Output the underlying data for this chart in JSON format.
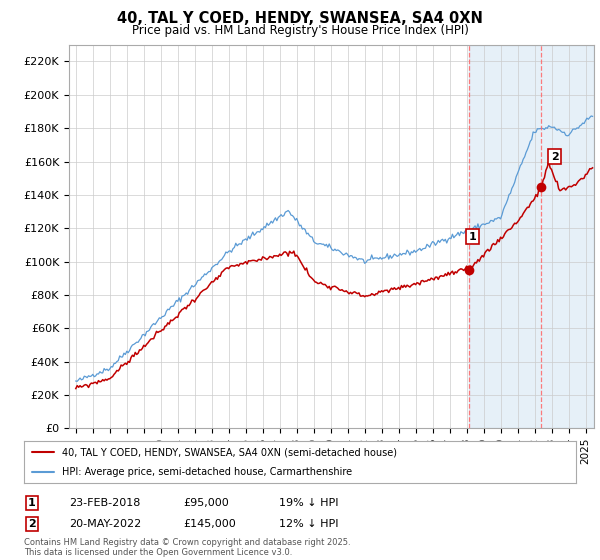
{
  "title_line1": "40, TAL Y COED, HENDY, SWANSEA, SA4 0XN",
  "title_line2": "Price paid vs. HM Land Registry's House Price Index (HPI)",
  "xlim_year": [
    1994.6,
    2025.5
  ],
  "ylim": [
    0,
    230000
  ],
  "yticks": [
    0,
    20000,
    40000,
    60000,
    80000,
    100000,
    120000,
    140000,
    160000,
    180000,
    200000,
    220000
  ],
  "ytick_labels": [
    "£0",
    "£20K",
    "£40K",
    "£60K",
    "£80K",
    "£100K",
    "£120K",
    "£140K",
    "£160K",
    "£180K",
    "£200K",
    "£220K"
  ],
  "xtick_years": [
    1995,
    1996,
    1997,
    1998,
    1999,
    2000,
    2001,
    2002,
    2003,
    2004,
    2005,
    2006,
    2007,
    2008,
    2009,
    2010,
    2011,
    2012,
    2013,
    2014,
    2015,
    2016,
    2017,
    2018,
    2019,
    2020,
    2021,
    2022,
    2023,
    2024,
    2025
  ],
  "hpi_color": "#5b9bd5",
  "price_color": "#c00000",
  "marker1_year": 2018.15,
  "marker1_price": 95000,
  "marker2_year": 2022.38,
  "marker2_price": 145000,
  "vline1_year": 2018.15,
  "vline2_year": 2022.38,
  "fill_color": "#ddeeff",
  "vline_color": "#ff6666",
  "legend_label_red": "40, TAL Y COED, HENDY, SWANSEA, SA4 0XN (semi-detached house)",
  "legend_label_blue": "HPI: Average price, semi-detached house, Carmarthenshire",
  "note1_num": "1",
  "note1_date": "23-FEB-2018",
  "note1_price": "£95,000",
  "note1_hpi": "19% ↓ HPI",
  "note2_num": "2",
  "note2_date": "20-MAY-2022",
  "note2_price": "£145,000",
  "note2_hpi": "12% ↓ HPI",
  "footer": "Contains HM Land Registry data © Crown copyright and database right 2025.\nThis data is licensed under the Open Government Licence v3.0.",
  "background_color": "#ffffff",
  "plot_bg_color": "#ffffff",
  "grid_color": "#cccccc"
}
